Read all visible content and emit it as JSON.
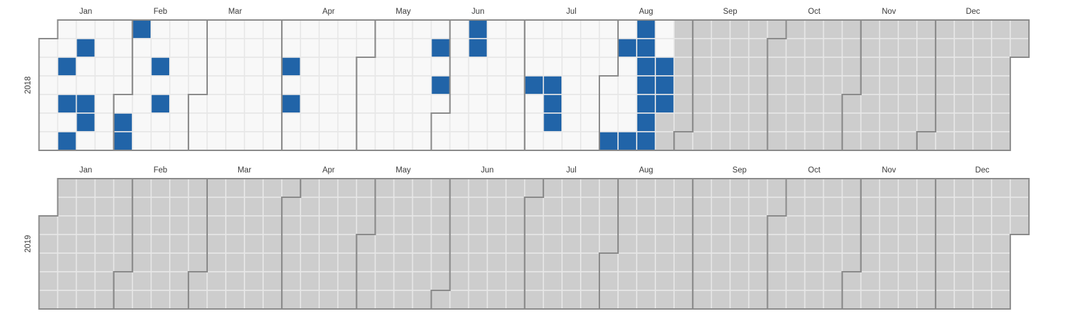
{
  "chart_data": {
    "type": "heatmap",
    "variant": "calendar-heatmap",
    "title": "",
    "legend_position": "none",
    "weeks_start_on": "Sunday",
    "rows_meaning": "weekday, Sunday at top through Saturday at bottom",
    "columns_meaning": "weeks of the year",
    "years": [
      {
        "year": 2018,
        "label": "2018"
      },
      {
        "year": 2019,
        "label": "2019"
      }
    ],
    "month_labels": [
      "Jan",
      "Feb",
      "Mar",
      "Apr",
      "May",
      "Jun",
      "Jul",
      "Aug",
      "Sep",
      "Oct",
      "Nov",
      "Dec"
    ],
    "highlighted_dates": [
      "2018-01-09",
      "2018-01-11",
      "2018-01-13",
      "2018-01-15",
      "2018-01-18",
      "2018-01-19",
      "2018-02-02",
      "2018-02-03",
      "2018-02-04",
      "2018-02-13",
      "2018-02-15",
      "2018-04-03",
      "2018-04-05",
      "2018-05-28",
      "2018-05-30",
      "2018-06-10",
      "2018-06-11",
      "2018-07-04",
      "2018-07-11",
      "2018-07-12",
      "2018-07-13",
      "2018-08-04",
      "2018-08-06",
      "2018-08-11",
      "2018-08-12",
      "2018-08-13",
      "2018-08-14",
      "2018-08-15",
      "2018-08-16",
      "2018-08-17",
      "2018-08-18",
      "2018-08-21",
      "2018-08-22",
      "2018-08-23"
    ],
    "observed_through": "2018-08-23",
    "cell_states": {
      "highlighted": "blue filled day",
      "observed": "white day on or before observed_through",
      "future": "gray day after observed_through"
    },
    "colors": {
      "highlight": "#2164a8",
      "observed": "#f8f8f8",
      "future": "#cdcdcd",
      "gridline": "#e7e7e7",
      "month_border": "#8a8a8a",
      "label_text": "#3a3a3a",
      "background": "#ffffff"
    }
  }
}
